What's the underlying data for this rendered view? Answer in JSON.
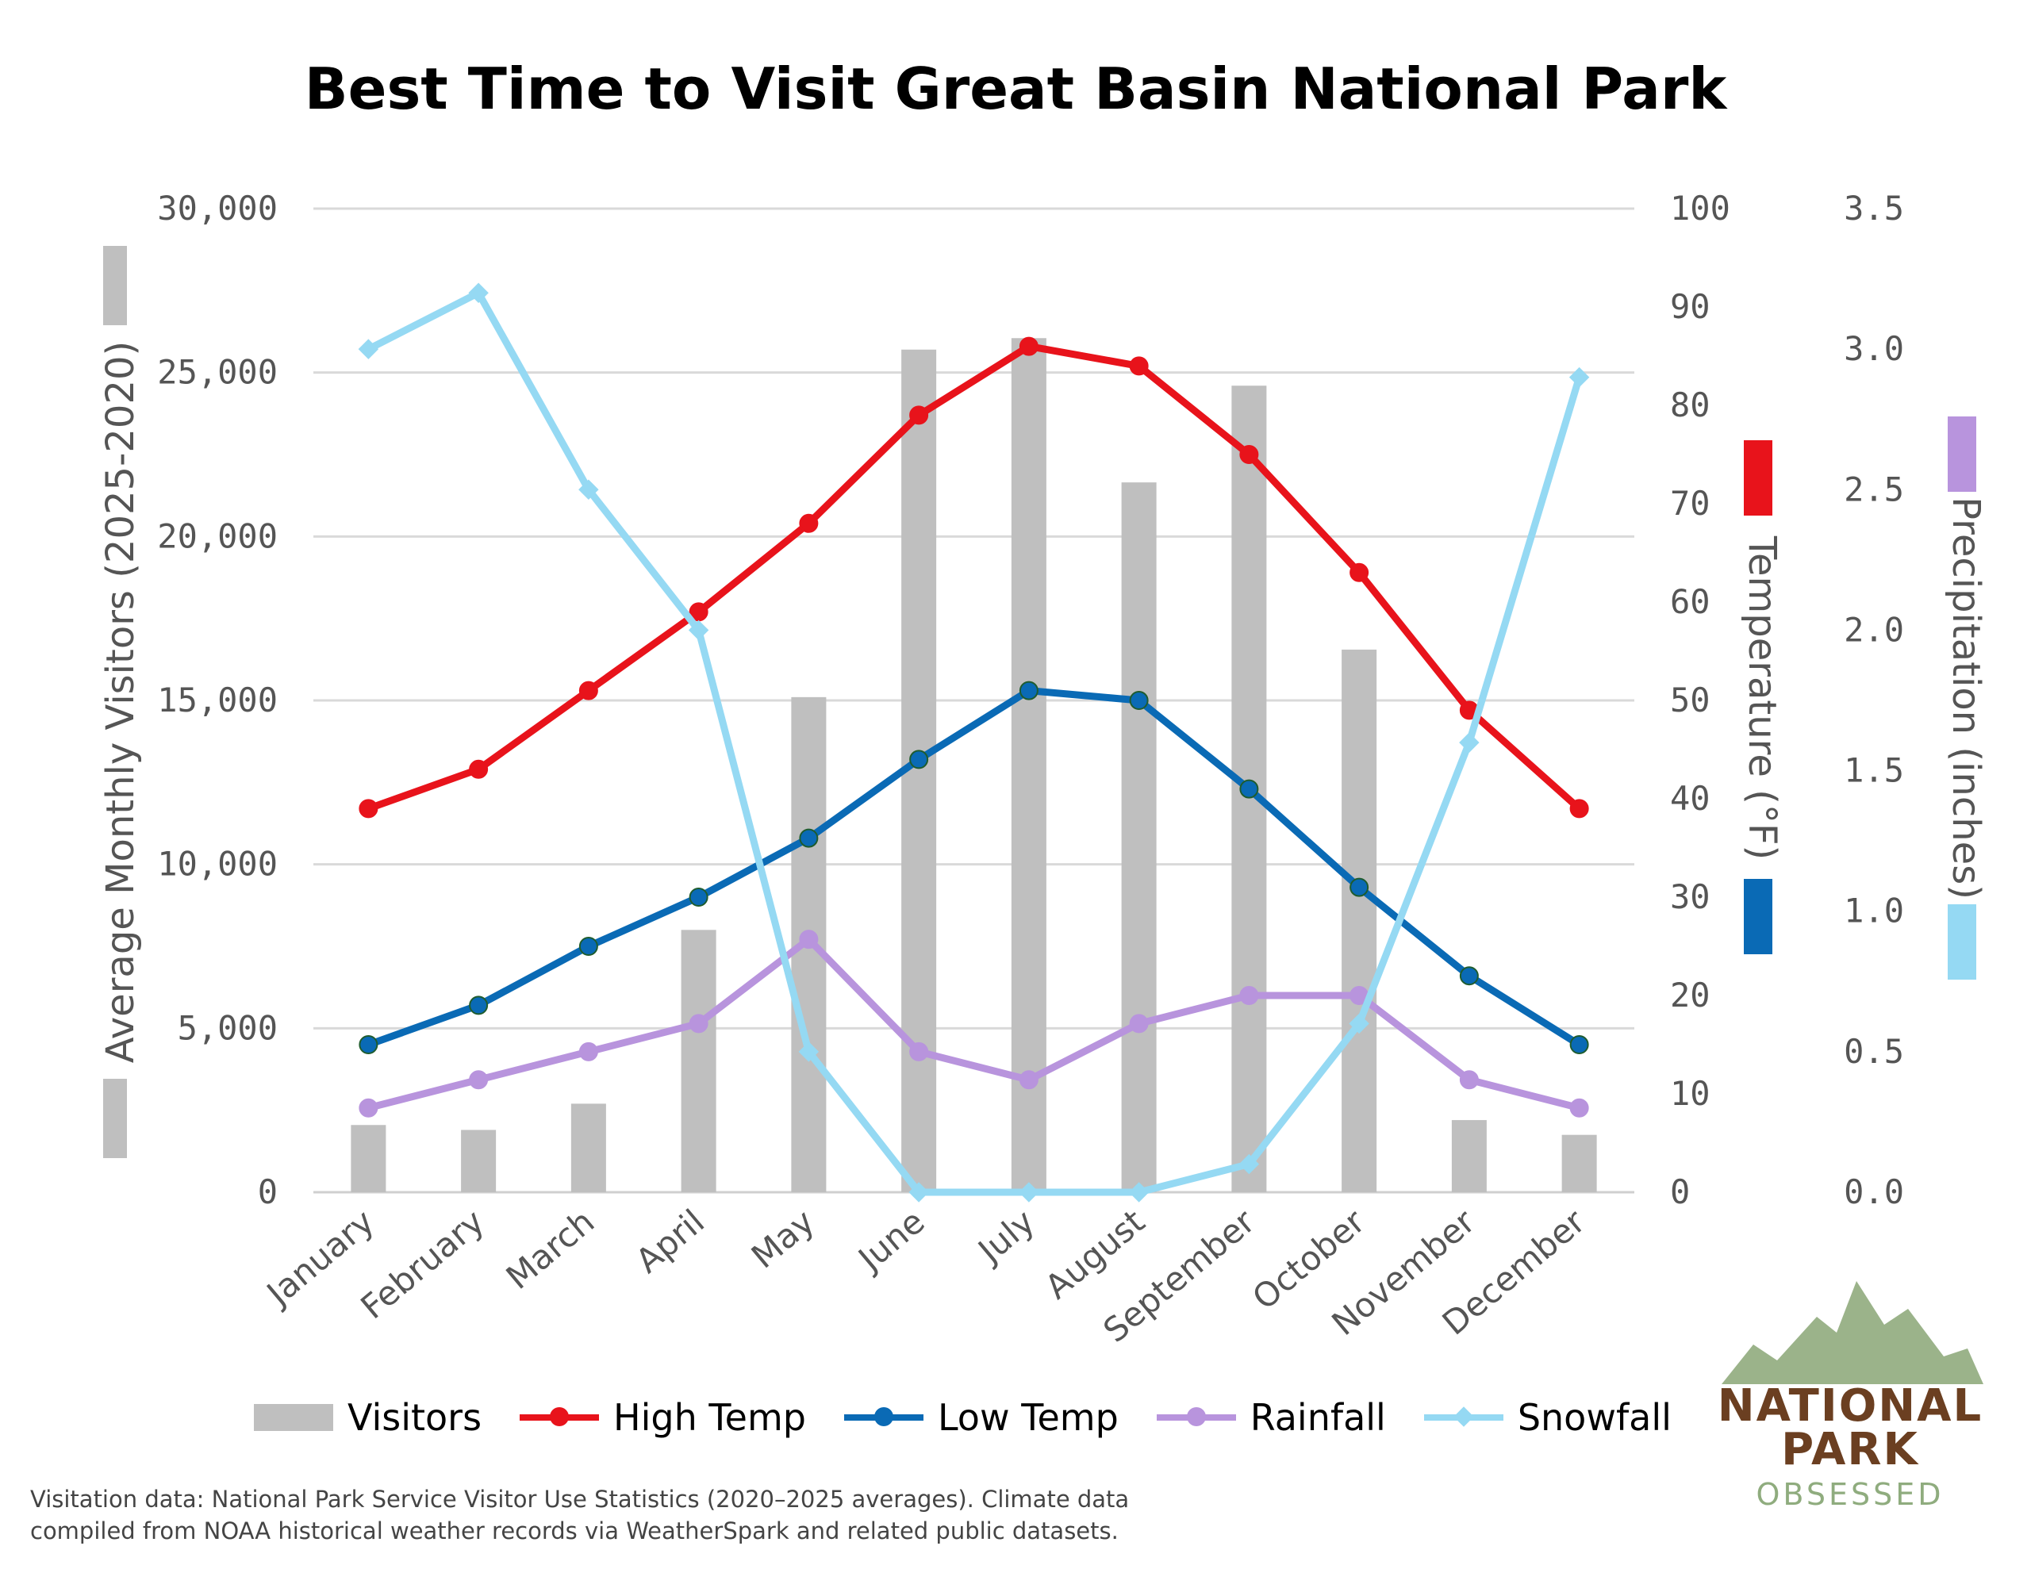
{
  "chart_data": {
    "type": "bar+line",
    "title": "Best Time to Visit Great Basin National Park",
    "categories": [
      "January",
      "February",
      "March",
      "April",
      "May",
      "June",
      "July",
      "August",
      "September",
      "October",
      "November",
      "December"
    ],
    "axes": {
      "left": {
        "label": "Average Monthly Visitors (2025-2020)",
        "range": [
          0,
          30000
        ],
        "ticks": [
          "0",
          "5,000",
          "10,000",
          "15,000",
          "20,000",
          "25,000",
          "30,000"
        ]
      },
      "right_temp": {
        "label": "Temperature (°F)",
        "range": [
          0,
          100
        ],
        "ticks": [
          "0",
          "10",
          "20",
          "30",
          "40",
          "50",
          "60",
          "70",
          "80",
          "90",
          "100"
        ]
      },
      "right_precip": {
        "label": "Precipitation (inches)",
        "range": [
          0,
          3.5
        ],
        "ticks": [
          "0.0",
          "0.5",
          "1.0",
          "1.5",
          "2.0",
          "2.5",
          "3.0",
          "3.5"
        ]
      }
    },
    "series": [
      {
        "name": "Visitors",
        "type": "bar",
        "axis": "left",
        "color": "#bfbfbf",
        "values": [
          2050,
          1900,
          2700,
          8000,
          15100,
          25700,
          26050,
          21650,
          24600,
          16550,
          2200,
          1750
        ]
      },
      {
        "name": "High Temp",
        "type": "line",
        "axis": "right_temp",
        "color": "#e8131b",
        "values": [
          39,
          43,
          51,
          59,
          68,
          79,
          86,
          84,
          75,
          63,
          49,
          39
        ]
      },
      {
        "name": "Low Temp",
        "type": "line",
        "axis": "right_temp",
        "color": "#0a6ab5",
        "values": [
          15,
          19,
          25,
          30,
          36,
          44,
          51,
          50,
          41,
          31,
          22,
          15
        ]
      },
      {
        "name": "Rainfall",
        "type": "line",
        "axis": "right_precip",
        "color": "#b894dd",
        "values": [
          0.3,
          0.4,
          0.5,
          0.6,
          0.9,
          0.5,
          0.4,
          0.6,
          0.7,
          0.7,
          0.4,
          0.3
        ]
      },
      {
        "name": "Snowfall",
        "type": "line",
        "axis": "right_precip",
        "color": "#95d9f3",
        "values": [
          3.0,
          3.2,
          2.5,
          2.0,
          0.5,
          0.0,
          0.0,
          0.0,
          0.1,
          0.6,
          1.6,
          2.9
        ]
      }
    ],
    "grid": true,
    "legend_position": "bottom"
  },
  "legend": {
    "visitors": "Visitors",
    "high": "High Temp",
    "low": "Low Temp",
    "rain": "Rainfall",
    "snow": "Snowfall"
  },
  "source": {
    "line1": "Visitation data: National Park Service Visitor Use Statistics (2020–2025 averages). Climate data",
    "line2": "compiled from NOAA historical weather records via WeatherSpark and related public datasets."
  },
  "logo": {
    "line1": "NATIONAL",
    "line2": "PARK",
    "line3": "OBSESSED",
    "colors": {
      "mountain": "#9bb38a",
      "text": "#6b3f21",
      "sub": "#8fac7e"
    }
  }
}
